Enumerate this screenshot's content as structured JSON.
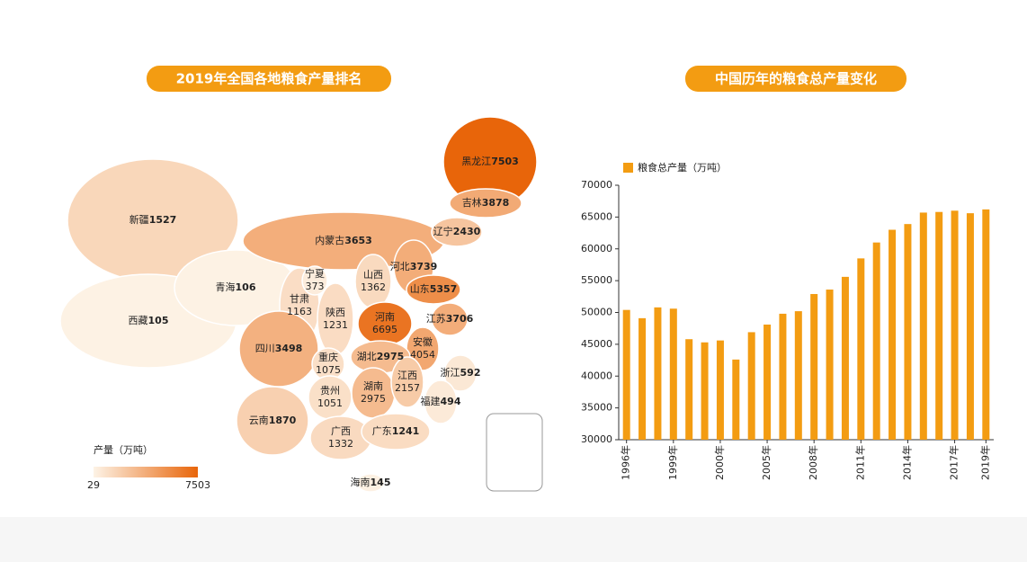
{
  "chart_data": [
    {
      "type": "map",
      "title": "2019年全国各地粮食产量排名",
      "legend_title": "产量（万吨）",
      "range": [
        29,
        7503
      ],
      "low_color": "#fdf3e6",
      "high_color": "#e8650a",
      "regions": [
        {
          "name": "新疆",
          "value": 1527
        },
        {
          "name": "西藏",
          "value": 105
        },
        {
          "name": "青海",
          "value": 106
        },
        {
          "name": "内蒙古",
          "value": 3653
        },
        {
          "name": "黑龙江",
          "value": 7503
        },
        {
          "name": "吉林",
          "value": 3878
        },
        {
          "name": "辽宁",
          "value": 2430
        },
        {
          "name": "甘肃",
          "value": 1163
        },
        {
          "name": "宁夏",
          "value": 373
        },
        {
          "name": "河北",
          "value": 3739
        },
        {
          "name": "山西",
          "value": 1362
        },
        {
          "name": "陕西",
          "value": 1231
        },
        {
          "name": "山东",
          "value": 5357
        },
        {
          "name": "河南",
          "value": 6695
        },
        {
          "name": "江苏",
          "value": 3706
        },
        {
          "name": "安徽",
          "value": 4054
        },
        {
          "name": "四川",
          "value": 3498
        },
        {
          "name": "重庆",
          "value": 1075
        },
        {
          "name": "湖北",
          "value": 2975
        },
        {
          "name": "湖南",
          "value": 2975
        },
        {
          "name": "贵州",
          "value": 1051
        },
        {
          "name": "江西",
          "value": 2157
        },
        {
          "name": "浙江",
          "value": 592
        },
        {
          "name": "福建",
          "value": 494
        },
        {
          "name": "云南",
          "value": 1870
        },
        {
          "name": "广西",
          "value": 1332
        },
        {
          "name": "广东",
          "value": 1241
        },
        {
          "name": "海南",
          "value": 145
        }
      ]
    },
    {
      "type": "bar",
      "title": "中国历年的粮食总产量变化",
      "categories": [
        "1996年",
        null,
        null,
        "1999年",
        null,
        null,
        "2000年",
        null,
        null,
        "2005年",
        null,
        null,
        "2008年",
        null,
        null,
        "2011年",
        null,
        null,
        "2014年",
        null,
        null,
        "2017年",
        null,
        "2019年"
      ],
      "series": [
        {
          "name": "粮食总产量（万吨）",
          "color": "#f39c12",
          "values": [
            50400,
            49100,
            50800,
            50600,
            45800,
            45300,
            45600,
            42600,
            46900,
            48100,
            49800,
            50200,
            52900,
            53600,
            55600,
            58500,
            61000,
            63000,
            63900,
            65700,
            65800,
            66000,
            65600,
            66200
          ]
        }
      ],
      "ylim": [
        30000,
        70000
      ],
      "yticks": [
        30000,
        35000,
        40000,
        45000,
        50000,
        55000,
        60000,
        65000,
        70000
      ]
    }
  ]
}
